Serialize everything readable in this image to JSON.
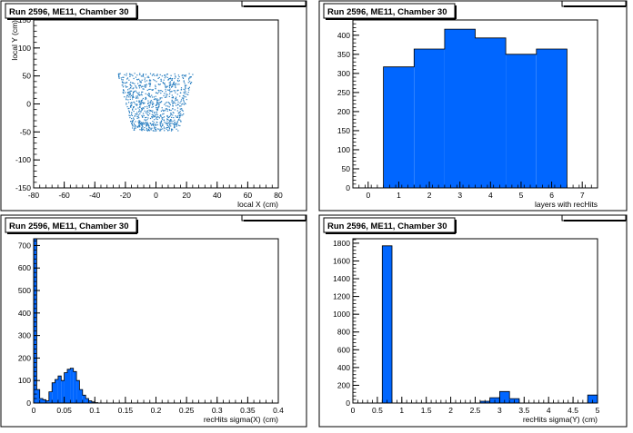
{
  "chart_data": [
    {
      "type": "scatter",
      "title": "Run 2596, ME11, Chamber 30",
      "xlabel": "local X (cm)",
      "ylabel": "local Y (cm)",
      "xlim": [
        -80,
        80
      ],
      "ylim": [
        -150,
        150
      ],
      "xticks": [
        -80,
        -60,
        -40,
        -20,
        0,
        20,
        40,
        60,
        80
      ],
      "yticks": [
        -150,
        -100,
        -50,
        0,
        50,
        100,
        150
      ],
      "yticklabels": [
        "-150",
        "-100",
        "-50",
        "0",
        "50",
        "100",
        "150"
      ],
      "points_region": {
        "x_top": [
          -25,
          25
        ],
        "x_bottom": [
          -15,
          15
        ],
        "y": [
          -48,
          55
        ]
      },
      "color": "#2a7fc1"
    },
    {
      "type": "bar",
      "title": "Run 2596, ME11, Chamber 30",
      "xlabel": "layers with recHits",
      "xlim": [
        -0.5,
        7.5
      ],
      "ylim": [
        0,
        440
      ],
      "xticks": [
        0,
        1,
        2,
        3,
        4,
        5,
        6,
        7
      ],
      "yticks": [
        0,
        50,
        100,
        150,
        200,
        250,
        300,
        350,
        400
      ],
      "bins": [
        [
          0.5,
          1.5
        ],
        [
          1.5,
          2.5
        ],
        [
          2.5,
          3.5
        ],
        [
          3.5,
          4.5
        ],
        [
          4.5,
          5.5
        ],
        [
          5.5,
          6.5
        ]
      ],
      "values": [
        317,
        364,
        416,
        393,
        350,
        364
      ],
      "color": "#0066ff"
    },
    {
      "type": "bar",
      "title": "Run 2596, ME11, Chamber 30",
      "xlabel": "recHits sigma(X) (cm)",
      "xlim": [
        0,
        0.4
      ],
      "ylim": [
        0,
        730
      ],
      "xticks": [
        0,
        0.05,
        0.1,
        0.15,
        0.2,
        0.25,
        0.3,
        0.35,
        0.4
      ],
      "xticklabels": [
        "0",
        "0.05",
        "0.1",
        "0.15",
        "0.2",
        "0.25",
        "0.3",
        "0.35",
        "0.4"
      ],
      "yticks": [
        0,
        100,
        200,
        300,
        400,
        500,
        600,
        700
      ],
      "bin_start": 0,
      "bin_width": 0.005,
      "values": [
        730,
        60,
        20,
        15,
        10,
        50,
        90,
        105,
        120,
        100,
        135,
        150,
        155,
        140,
        100,
        60,
        35,
        20,
        10,
        5,
        2
      ],
      "color": "#0066ff"
    },
    {
      "type": "bar",
      "title": "Run 2596, ME11, Chamber 30",
      "xlabel": "recHits sigma(Y) (cm)",
      "xlim": [
        0,
        5
      ],
      "ylim": [
        0,
        1850
      ],
      "xticks": [
        0,
        0.5,
        1,
        1.5,
        2,
        2.5,
        3,
        3.5,
        4,
        4.5,
        5
      ],
      "xticklabels": [
        "0",
        "0.5",
        "1",
        "1.5",
        "2",
        "2.5",
        "3",
        "3.5",
        "4",
        "4.5",
        "5"
      ],
      "yticks": [
        0,
        200,
        400,
        600,
        800,
        1000,
        1200,
        1400,
        1600,
        1800
      ],
      "bins": [
        [
          0.6,
          0.8
        ],
        [
          2.6,
          2.8
        ],
        [
          2.8,
          3.0
        ],
        [
          3.0,
          3.2
        ],
        [
          3.2,
          3.4
        ],
        [
          4.8,
          5.0
        ]
      ],
      "values": [
        1770,
        20,
        60,
        130,
        50,
        90
      ],
      "color": "#0066ff"
    }
  ]
}
